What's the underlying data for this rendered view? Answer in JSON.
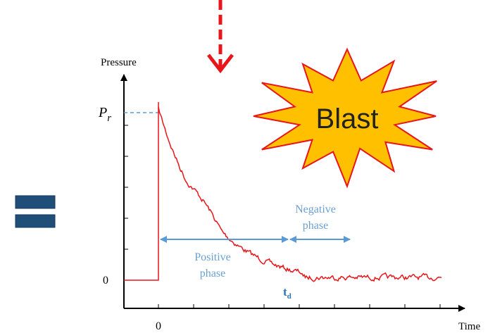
{
  "axes": {
    "y_label": "Pressure",
    "x_label": "Time",
    "y_zero": "0",
    "x_zero": "0"
  },
  "peak": {
    "symbol": "P",
    "subscript": "r"
  },
  "blast": "Blast",
  "positive_phase": {
    "line1": "Positive",
    "line2": "phase"
  },
  "negative_phase": {
    "line1": "Negative",
    "line2": "phase"
  },
  "duration": {
    "symbol": "t",
    "subscript": "d"
  }
}
